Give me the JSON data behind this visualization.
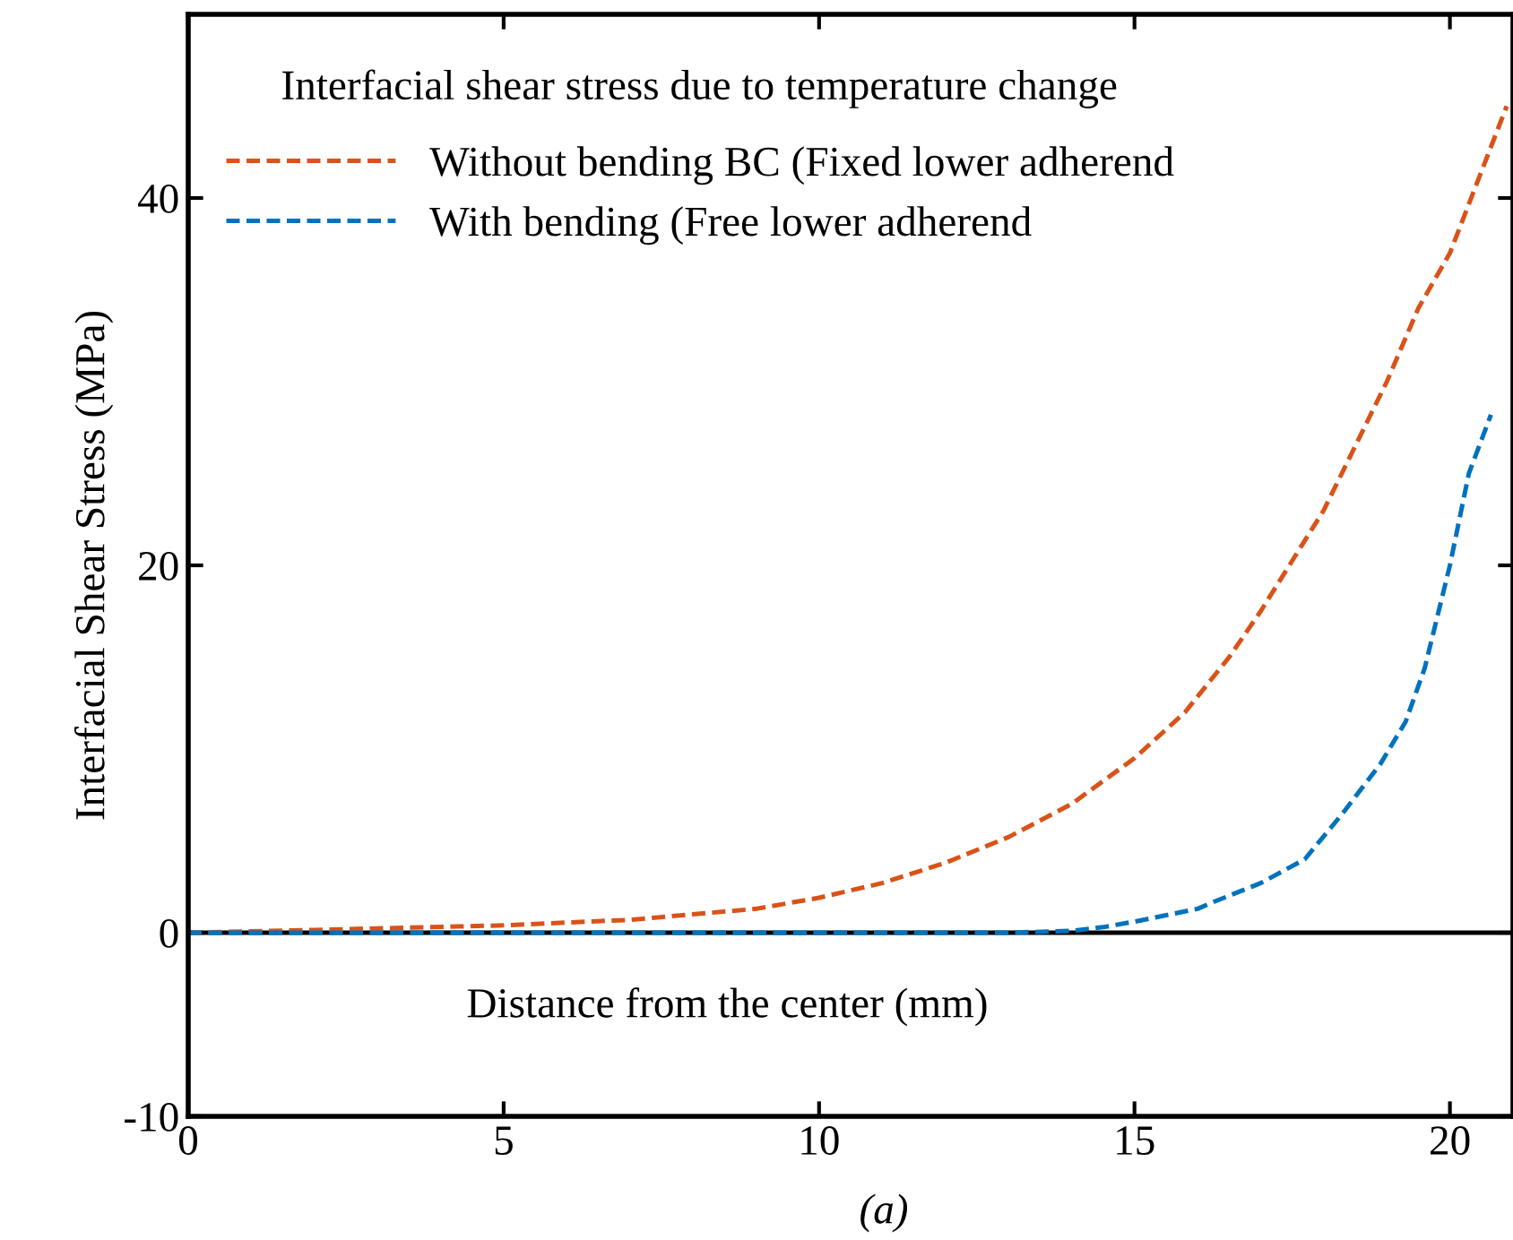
{
  "chart_data": {
    "type": "line",
    "title": "Interfacial shear stress due to temperature change",
    "xlabel": "Distance from the center (mm)",
    "ylabel": "Interfacial Shear Stress (MPa)",
    "annotations": [
      "(a)"
    ],
    "series": [
      {
        "name": "Without bending BC (Fixed lower adherend",
        "color": "#d95319",
        "line_style": "dashed",
        "x": [
          0,
          2,
          5,
          7,
          9,
          10,
          11,
          12,
          13,
          14,
          15,
          15.8,
          16.5,
          17,
          18,
          19,
          19.5,
          20,
          20.9
        ],
        "values": [
          0,
          0.15,
          0.4,
          0.7,
          1.3,
          1.9,
          2.7,
          3.8,
          5.2,
          7.0,
          9.5,
          12,
          15,
          17.5,
          23,
          30,
          34,
          37,
          45
        ]
      },
      {
        "name": "With bending (Free lower adherend",
        "color": "#0072bd",
        "line_style": "dashed",
        "x": [
          0,
          5,
          10,
          13,
          14,
          14.5,
          15,
          16,
          16.2,
          17,
          17.7,
          18.3,
          18.9,
          19.3,
          19.6,
          20,
          20.3,
          20.65
        ],
        "values": [
          0,
          0,
          0,
          0,
          0.1,
          0.3,
          0.6,
          1.3,
          1.6,
          2.7,
          4.0,
          6.5,
          9.2,
          11.5,
          14.4,
          20,
          25,
          28.2
        ]
      }
    ],
    "ref_lines": [
      {
        "axis": "y",
        "value": 0,
        "color": "#000000"
      }
    ],
    "xlim": [
      0,
      21
    ],
    "ylim": [
      -10,
      50
    ],
    "xticks": [
      0,
      5,
      10,
      15,
      20
    ],
    "yticks": [
      -10,
      0,
      20,
      40
    ],
    "grid": false,
    "legend": "top left"
  }
}
